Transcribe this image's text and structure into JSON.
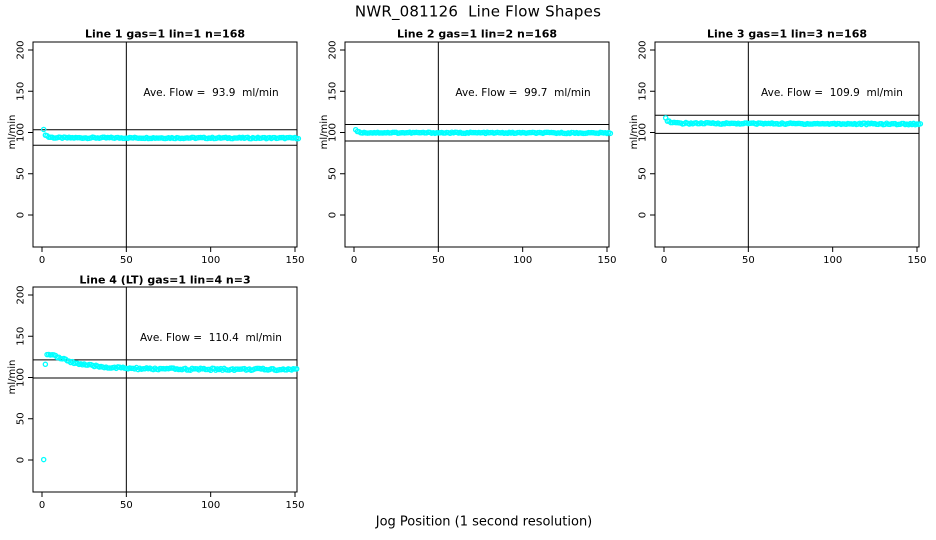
{
  "figure": {
    "title": "NWR_081126  Line Flow Shapes",
    "xlabel": "Jog Position (1 second resolution)",
    "background_color": "#ffffff",
    "axis_color": "#000000",
    "point_color": "#00ffff"
  },
  "chart_data": [
    {
      "type": "scatter",
      "title": "Line 1 gas=1 lin=1 n=168",
      "annotation": "Ave. Flow =  93.9  ml/min",
      "ave_flow_ml_min": 93.9,
      "n": 168,
      "ylabel": "ml/min",
      "xticks": [
        0,
        50,
        100,
        150
      ],
      "yticks": [
        0,
        50,
        100,
        150,
        200
      ],
      "xlim": [
        -5,
        151
      ],
      "ylim": [
        -39,
        210
      ],
      "grid": false,
      "vline_x": 50,
      "ref_lines": [
        103.3,
        84.5
      ],
      "ref_lines_note": "average flow plus/minus 10%",
      "x_start": 1,
      "x_end": 152,
      "jitter": 0.8,
      "series_profile": [
        [
          1,
          103
        ],
        [
          2,
          97.5
        ],
        [
          4,
          94.5
        ],
        [
          8,
          93.6
        ],
        [
          152,
          93.3
        ]
      ],
      "extra_points": []
    },
    {
      "type": "scatter",
      "title": "Line 2 gas=1 lin=2 n=168",
      "annotation": "Ave. Flow =  99.7  ml/min",
      "ave_flow_ml_min": 99.7,
      "n": 168,
      "ylabel": "ml/min",
      "xticks": [
        0,
        50,
        100,
        150
      ],
      "yticks": [
        0,
        50,
        100,
        150,
        200
      ],
      "xlim": [
        -5,
        151
      ],
      "ylim": [
        -39,
        210
      ],
      "grid": false,
      "vline_x": 50,
      "ref_lines": [
        109.7,
        89.7
      ],
      "ref_lines_note": "average flow plus/minus 10%",
      "x_start": 1,
      "x_end": 152,
      "jitter": 0.7,
      "series_profile": [
        [
          1,
          103.5
        ],
        [
          3,
          100.3
        ],
        [
          6,
          99.8
        ],
        [
          152,
          99.4
        ]
      ],
      "extra_points": []
    },
    {
      "type": "scatter",
      "title": "Line 3 gas=1 lin=3 n=168",
      "annotation": "Ave. Flow =  109.9  ml/min",
      "ave_flow_ml_min": 109.9,
      "n": 168,
      "ylabel": "ml/min",
      "xticks": [
        0,
        50,
        100,
        150
      ],
      "yticks": [
        0,
        50,
        100,
        150,
        200
      ],
      "xlim": [
        -5,
        151
      ],
      "ylim": [
        -39,
        210
      ],
      "grid": false,
      "vline_x": 50,
      "ref_lines": [
        120.9,
        98.9
      ],
      "ref_lines_note": "average flow plus/minus 10%",
      "x_start": 1,
      "x_end": 152,
      "jitter": 0.9,
      "series_profile": [
        [
          1,
          118.5
        ],
        [
          2,
          114.5
        ],
        [
          4,
          112.3
        ],
        [
          8,
          111.2
        ],
        [
          152,
          110.2
        ]
      ],
      "extra_points": []
    },
    {
      "type": "scatter",
      "title": "Line 4 (LT) gas=1 lin=4 n=3",
      "annotation": "Ave. Flow =  110.4  ml/min",
      "ave_flow_ml_min": 110.4,
      "n": 3,
      "ylabel": "ml/min",
      "xticks": [
        0,
        50,
        100,
        150
      ],
      "yticks": [
        0,
        50,
        100,
        150,
        200
      ],
      "xlim": [
        -5,
        151
      ],
      "ylim": [
        -39,
        210
      ],
      "grid": false,
      "vline_x": 50,
      "ref_lines": [
        121.4,
        99.4
      ],
      "ref_lines_note": "average flow plus/minus 10%",
      "x_start": 3,
      "x_end": 151,
      "jitter": 1.3,
      "series_profile": [
        [
          3,
          128.5
        ],
        [
          6,
          127.5
        ],
        [
          10,
          124
        ],
        [
          15,
          120.5
        ],
        [
          20,
          117.5
        ],
        [
          25,
          115.5
        ],
        [
          30,
          114
        ],
        [
          40,
          112.2
        ],
        [
          50,
          111.2
        ],
        [
          60,
          110.5
        ],
        [
          90,
          110
        ],
        [
          151,
          109.8
        ]
      ],
      "extra_points": [
        [
          1,
          0.5
        ],
        [
          2,
          116
        ]
      ]
    }
  ]
}
